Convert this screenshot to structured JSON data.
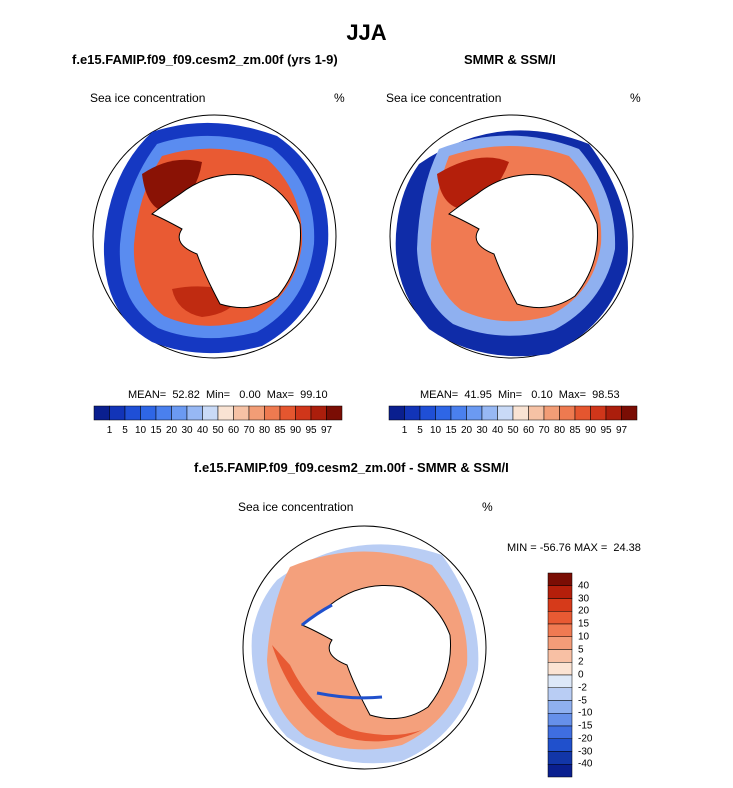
{
  "title": "JJA",
  "panels": [
    {
      "title": "f.e15.FAMIP.f09_f09.cesm2_zm.00f (yrs 1-9)",
      "variable": "Sea ice concentration",
      "units": "%",
      "stats": "MEAN=  52.82  Min=   0.00  Max=  99.10"
    },
    {
      "title": "SMMR & SSM/I",
      "variable": "Sea ice concentration",
      "units": "%",
      "stats": "MEAN=  41.95  Min=   0.10  Max=  98.53"
    }
  ],
  "diff_panel": {
    "title": "f.e15.FAMIP.f09_f09.cesm2_zm.00f - SMMR & SSM/I",
    "variable": "Sea ice concentration",
    "units": "%",
    "minmax": "MIN = -56.76 MAX =  24.38"
  },
  "colorbar_levels": [
    "1",
    "5",
    "10",
    "15",
    "20",
    "30",
    "40",
    "50",
    "60",
    "70",
    "80",
    "85",
    "90",
    "95",
    "97"
  ],
  "colorbar_colors": [
    "#0a1f8f",
    "#1234b8",
    "#1f4fd6",
    "#2e66e6",
    "#4a80ee",
    "#6b9af2",
    "#97b8f4",
    "#c9daf7",
    "#f9e3d3",
    "#f6c2a5",
    "#f29d76",
    "#ee7a50",
    "#e5562f",
    "#d0361a",
    "#ab1e0c",
    "#7a0d04"
  ],
  "diff_levels": [
    "40",
    "30",
    "20",
    "15",
    "10",
    "5",
    "2",
    "0",
    "-2",
    "-5",
    "-10",
    "-15",
    "-20",
    "-30",
    "-40"
  ],
  "diff_colors": [
    "#7a0d04",
    "#b41f0b",
    "#d63a1a",
    "#e85a33",
    "#f07a52",
    "#f49c78",
    "#f8c0a4",
    "#fbe3d3",
    "#dde8f8",
    "#b9cdf4",
    "#8fb0f0",
    "#6690ea",
    "#3f6ee0",
    "#2050cc",
    "#1236a8",
    "#0a1f8f"
  ]
}
